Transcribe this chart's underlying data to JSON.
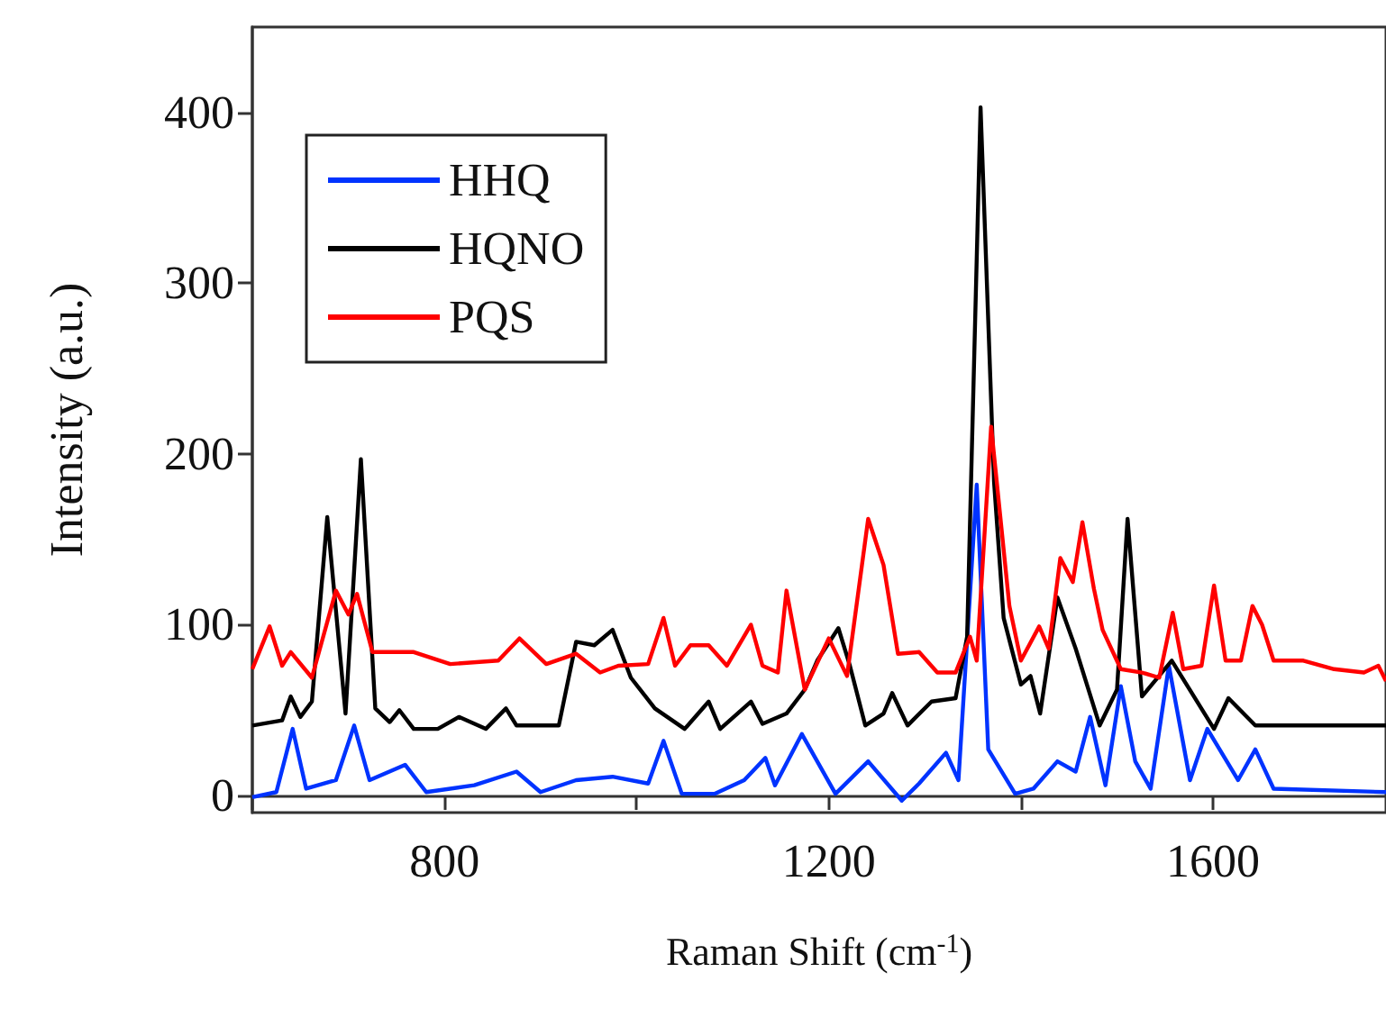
{
  "chart_data": {
    "type": "line",
    "xlabel": "Raman Shift (cm$^{-1}$)",
    "ylabel": "Intensity (a.u.)",
    "xlim": [
      600,
      1780
    ],
    "xticks": [
      {
        "value": 600,
        "label": null
      },
      800,
      {
        "value": 1000,
        "label": null
      },
      1200,
      {
        "value": 1400,
        "label": null
      },
      1600
    ],
    "ylim": [
      -10,
      450
    ],
    "yticks": [
      0,
      100,
      200,
      300,
      400
    ],
    "legend": "top left",
    "marker": "none",
    "series": [
      {
        "name": "HHQ",
        "color": "#0033ff",
        "x": [
          600,
          625,
          642,
          656,
          687,
          706,
          722,
          759,
          781,
          831,
          875,
          900,
          937,
          975,
          1012,
          1028,
          1047,
          1081,
          1112,
          1134,
          1144,
          1172,
          1207,
          1241,
          1276,
          1294,
          1322,
          1335,
          1354,
          1366,
          1394,
          1413,
          1438,
          1457,
          1472,
          1488,
          1504,
          1519,
          1535,
          1554,
          1576,
          1594,
          1626,
          1644,
          1663,
          1780
        ],
        "values": [
          -1,
          2,
          39,
          4,
          9,
          41,
          9,
          18,
          2,
          6,
          14,
          2,
          9,
          11,
          7,
          32,
          1,
          1,
          9,
          22,
          6,
          36,
          1,
          20,
          -3,
          7,
          25,
          9,
          182,
          27,
          1,
          4,
          20,
          14,
          46,
          6,
          64,
          20,
          4,
          76,
          9,
          39,
          9,
          27,
          4,
          2
        ]
      },
      {
        "name": "HQNO",
        "color": "#000000",
        "x": [
          600,
          631,
          640,
          650,
          662,
          678,
          697,
          713,
          728,
          743,
          753,
          768,
          793,
          815,
          843,
          864,
          875,
          919,
          937,
          956,
          975,
          994,
          1019,
          1050,
          1075,
          1087,
          1119,
          1131,
          1156,
          1175,
          1188,
          1210,
          1222,
          1238,
          1257,
          1266,
          1282,
          1307,
          1332,
          1344,
          1358,
          1372,
          1382,
          1400,
          1410,
          1420,
          1438,
          1457,
          1482,
          1500,
          1511,
          1526,
          1557,
          1601,
          1616,
          1644,
          1780
        ],
        "values": [
          41,
          44,
          58,
          46,
          55,
          163,
          48,
          197,
          51,
          43,
          50,
          39,
          39,
          46,
          39,
          51,
          41,
          41,
          90,
          88,
          97,
          69,
          51,
          39,
          55,
          39,
          55,
          42,
          48,
          62,
          79,
          98,
          76,
          41,
          48,
          60,
          41,
          55,
          57,
          93,
          403,
          184,
          104,
          65,
          70,
          48,
          116,
          86,
          41,
          62,
          162,
          58,
          79,
          39,
          57,
          41,
          41
        ]
      },
      {
        "name": "PQS",
        "color": "#ff0000",
        "x": [
          600,
          618,
          631,
          640,
          662,
          687,
          700,
          709,
          725,
          768,
          806,
          856,
          878,
          906,
          937,
          962,
          981,
          1012,
          1028,
          1040,
          1056,
          1075,
          1094,
          1119,
          1131,
          1147,
          1156,
          1175,
          1200,
          1219,
          1241,
          1257,
          1272,
          1294,
          1313,
          1332,
          1347,
          1354,
          1369,
          1388,
          1400,
          1419,
          1429,
          1441,
          1454,
          1464,
          1476,
          1485,
          1504,
          1526,
          1544,
          1558,
          1569,
          1588,
          1601,
          1613,
          1629,
          1641,
          1651,
          1663,
          1694,
          1726,
          1757,
          1772,
          1780
        ],
        "values": [
          74,
          99,
          76,
          84,
          69,
          120,
          106,
          118,
          84,
          84,
          77,
          79,
          92,
          77,
          83,
          72,
          76,
          77,
          104,
          76,
          88,
          88,
          76,
          100,
          76,
          72,
          120,
          62,
          92,
          70,
          162,
          135,
          83,
          84,
          72,
          72,
          93,
          79,
          216,
          111,
          79,
          99,
          86,
          139,
          125,
          160,
          121,
          97,
          74,
          72,
          69,
          107,
          74,
          76,
          123,
          79,
          79,
          111,
          100,
          79,
          79,
          74,
          72,
          76,
          67
        ]
      }
    ]
  }
}
